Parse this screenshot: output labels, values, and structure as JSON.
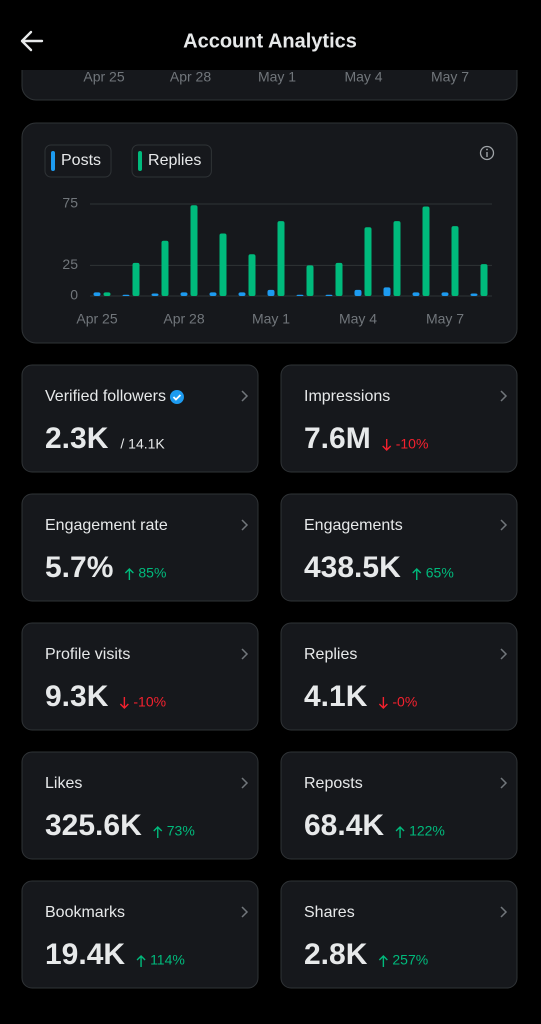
{
  "header": {
    "title": "Account Analytics"
  },
  "top_axis_labels": [
    "Apr 25",
    "Apr 28",
    "May 1",
    "May 4",
    "May 7"
  ],
  "chart_data": {
    "type": "bar",
    "categories": [
      "Apr 25",
      null,
      null,
      "Apr 28",
      null,
      null,
      "May 1",
      null,
      null,
      "May 4",
      null,
      null,
      "May 7",
      null
    ],
    "series": [
      {
        "name": "Posts",
        "color": "#1d9bf0",
        "values": [
          3,
          1,
          2,
          3,
          3,
          3,
          5,
          1,
          1,
          5,
          7,
          3,
          3,
          2
        ]
      },
      {
        "name": "Replies",
        "color": "#00ba7c",
        "values": [
          3,
          27,
          45,
          74,
          51,
          34,
          61,
          25,
          27,
          56,
          61,
          73,
          57,
          26
        ]
      }
    ],
    "ylim": [
      0,
      80
    ],
    "yticks": [
      0,
      25,
      75
    ],
    "grid": true
  },
  "metrics": [
    {
      "title": "Verified followers",
      "value": "2.3K",
      "sub": "/ 14.1K"
    },
    {
      "title": "Impressions",
      "value": "7.6M",
      "change": "-10%"
    },
    {
      "title": "Engagement rate",
      "value": "5.7%",
      "change": "85%"
    },
    {
      "title": "Engagements",
      "value": "438.5K",
      "change": "65%"
    },
    {
      "title": "Profile visits",
      "value": "9.3K",
      "change": "-10%"
    },
    {
      "title": "Replies",
      "value": "4.1K",
      "change": "-0%"
    },
    {
      "title": "Likes",
      "value": "325.6K",
      "change": "73%"
    },
    {
      "title": "Reposts",
      "value": "68.4K",
      "change": "122%"
    },
    {
      "title": "Bookmarks",
      "value": "19.4K",
      "change": "114%"
    },
    {
      "title": "Shares",
      "value": "2.8K",
      "change": "257%"
    }
  ]
}
